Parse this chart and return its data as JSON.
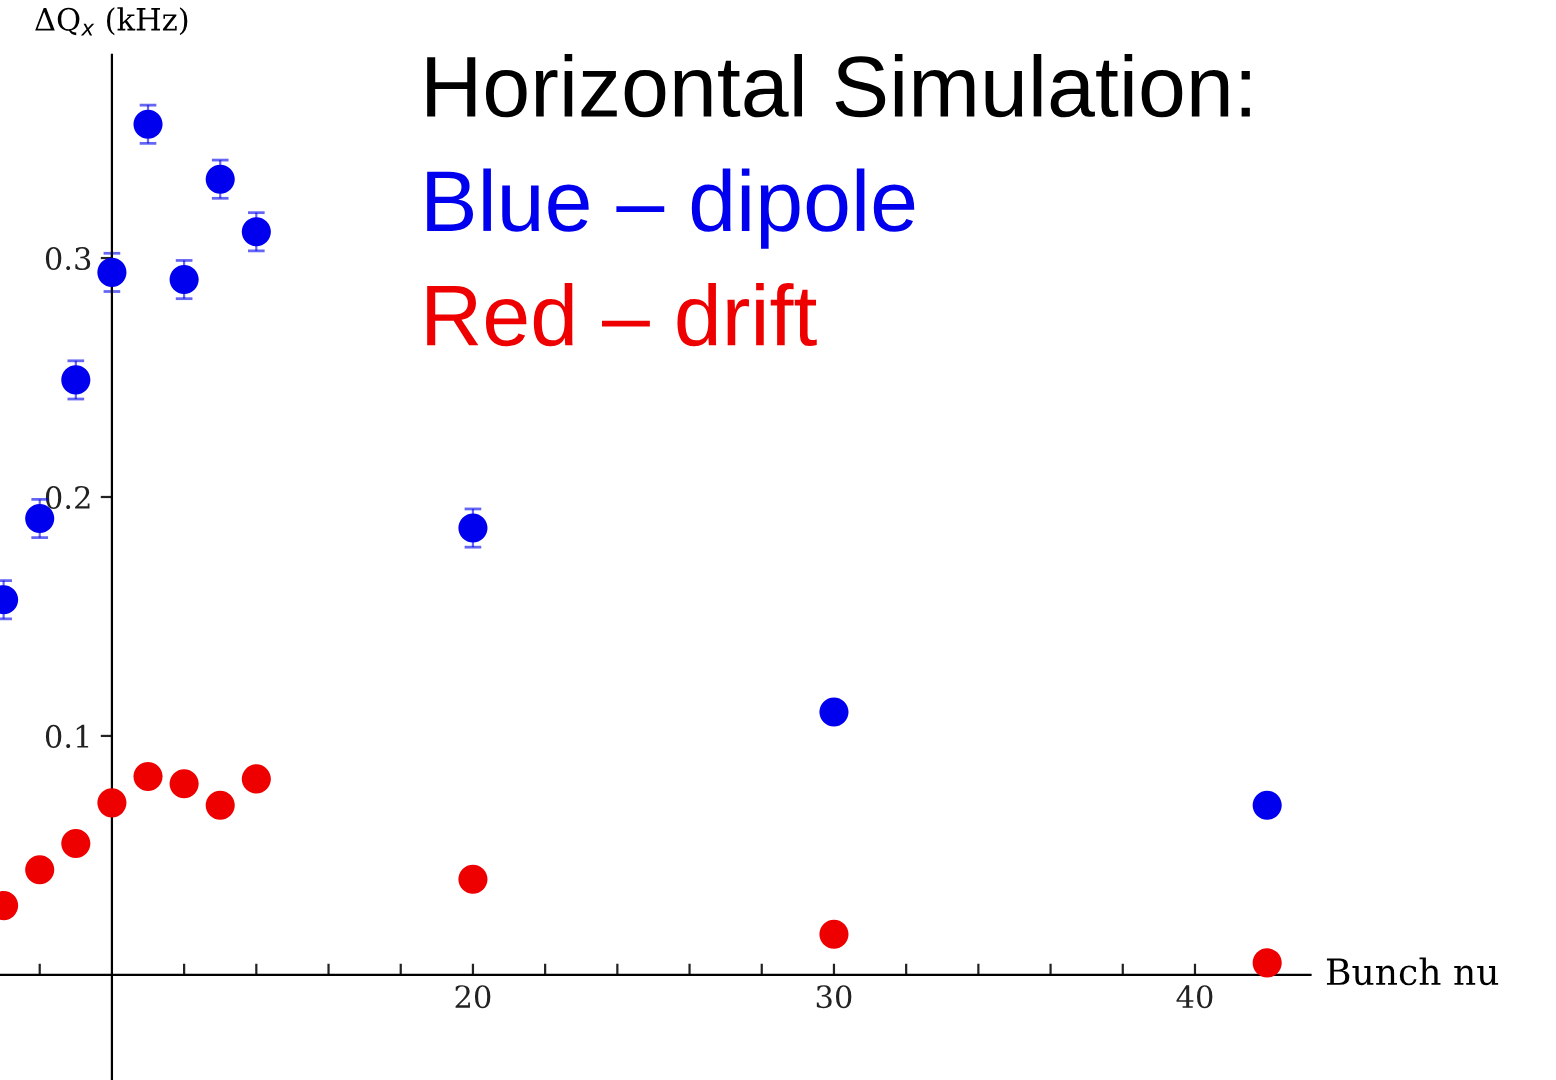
{
  "chart_data": {
    "type": "scatter",
    "title": "Horizontal Simulation:",
    "xlabel": "Bunch nu",
    "ylabel": "ΔQ$_{x}$ (kHz)",
    "x": [
      7,
      8,
      9,
      10,
      11,
      12,
      13,
      14,
      20,
      30,
      42
    ],
    "series": [
      {
        "name": "Blue – dipole",
        "color": "#0000ee",
        "values": [
          0.157,
          0.191,
          0.249,
          0.294,
          0.356,
          0.291,
          0.333,
          0.311,
          0.187,
          0.11,
          0.071
        ],
        "errors": [
          0.008,
          0.008,
          0.008,
          0.008,
          0.008,
          0.008,
          0.008,
          0.008,
          0.008,
          null,
          null
        ]
      },
      {
        "name": "Red – drift",
        "color": "#ee0000",
        "values": [
          0.029,
          0.044,
          0.055,
          0.072,
          0.083,
          0.08,
          0.071,
          0.082,
          0.04,
          0.017,
          0.005
        ]
      }
    ],
    "xlim": [
      6.9,
      50
    ],
    "ylim": [
      -0.044,
      0.408
    ],
    "xticks": [
      {
        "value": 8,
        "label": null
      },
      {
        "value": 12,
        "label": null
      },
      {
        "value": 14,
        "label": null
      },
      {
        "value": 16,
        "label": null
      },
      {
        "value": 18,
        "label": null
      },
      20,
      {
        "value": 22,
        "label": null
      },
      {
        "value": 24,
        "label": null
      },
      {
        "value": 26,
        "label": null
      },
      {
        "value": 28,
        "label": null
      },
      30,
      {
        "value": 32,
        "label": null
      },
      {
        "value": 34,
        "label": null
      },
      {
        "value": 36,
        "label": null
      },
      {
        "value": 38,
        "label": null
      },
      40,
      {
        "value": 42,
        "label": null
      }
    ],
    "yticks": [
      0.1,
      0.2,
      0.3
    ],
    "marker": "circle",
    "grid": false,
    "legend": "top"
  }
}
